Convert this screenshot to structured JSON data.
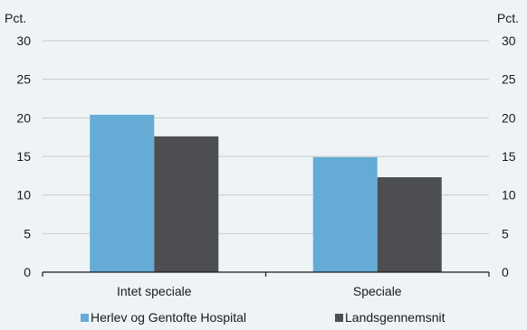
{
  "chart_data": {
    "type": "bar",
    "categories": [
      "Intet speciale",
      "Speciale"
    ],
    "series": [
      {
        "name": "Herlev og Gentofte Hospital",
        "values": [
          20.4,
          14.9
        ],
        "color": "#64acd6"
      },
      {
        "name": "Landsgennemsnit",
        "values": [
          17.6,
          12.3
        ],
        "color": "#4d4e52"
      }
    ],
    "ylim": [
      0,
      30
    ],
    "yticks": [
      0,
      5,
      10,
      15,
      20,
      25,
      30
    ],
    "yunit_left": "Pct.",
    "yunit_right": "Pct.",
    "grid": true,
    "legend_position": "bottom"
  }
}
